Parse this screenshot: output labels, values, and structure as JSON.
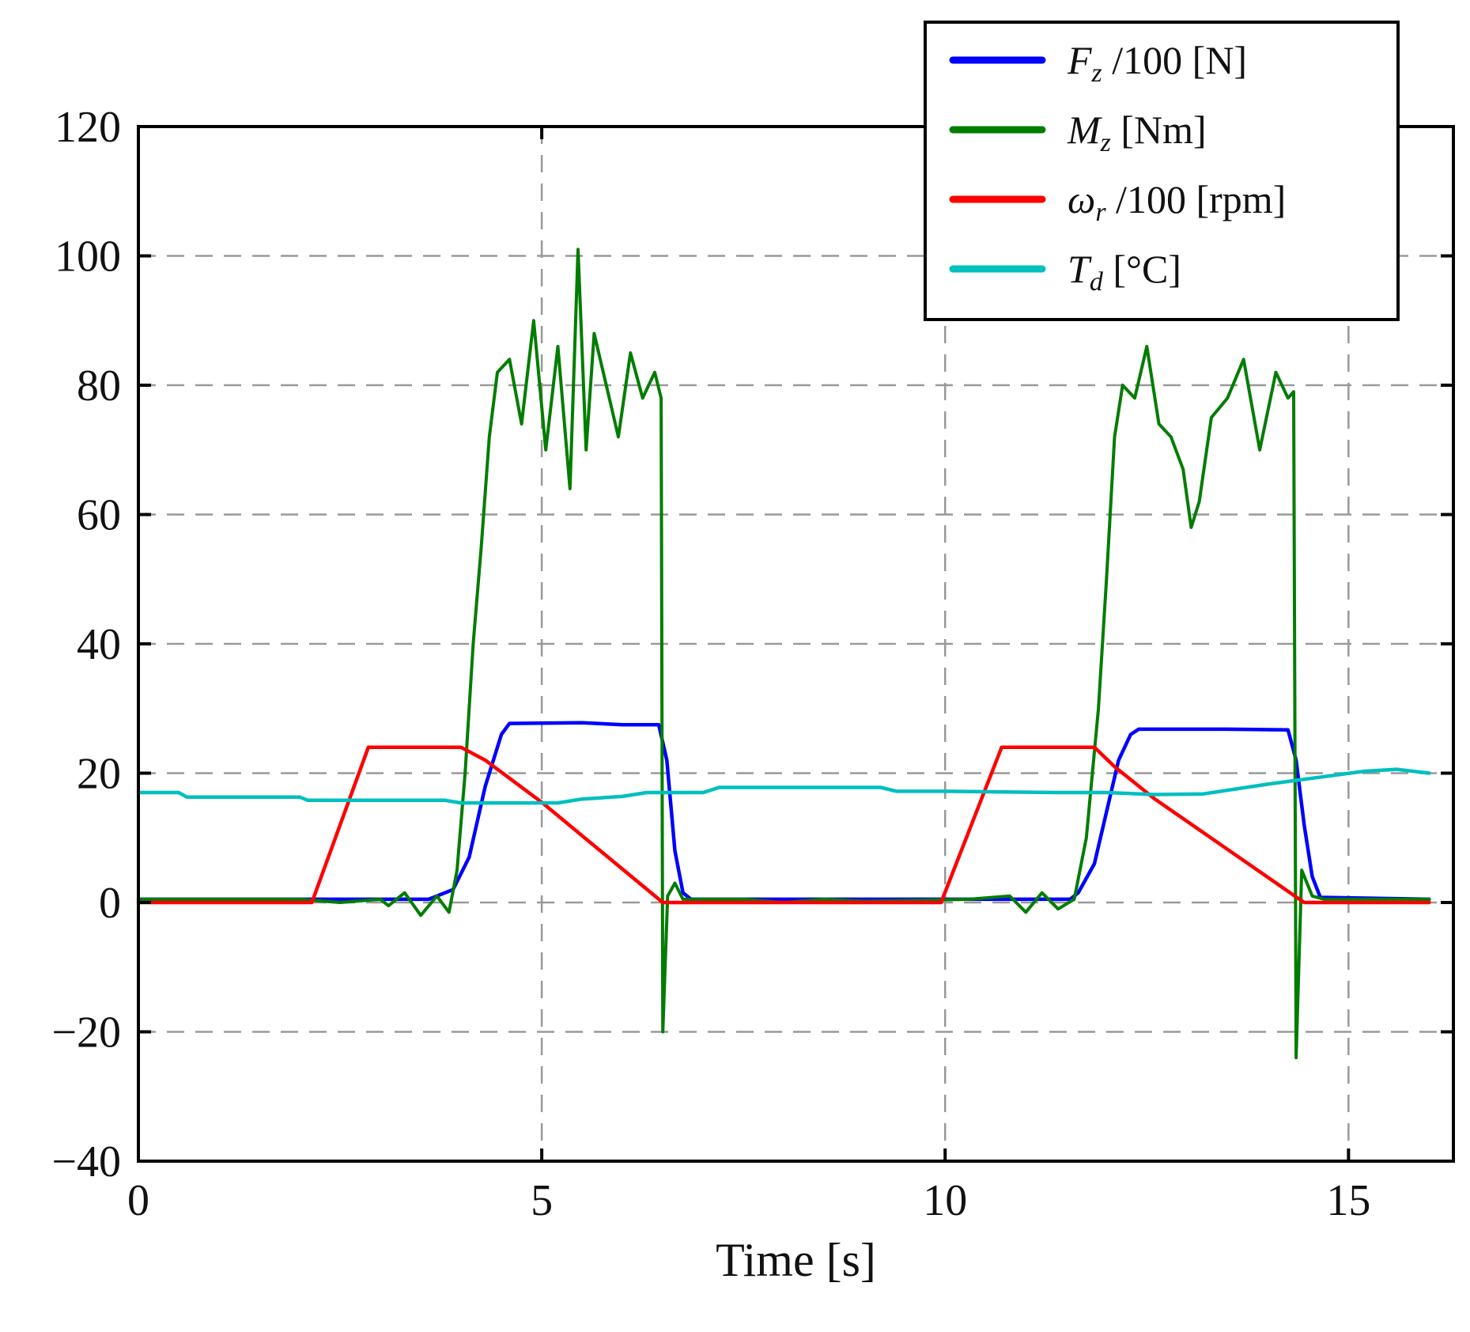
{
  "chart_data": {
    "type": "line",
    "title": "",
    "xlabel": "Time [s]",
    "ylabel": "",
    "xlim": [
      0,
      16.3
    ],
    "ylim": [
      -40,
      120
    ],
    "x_ticks": [
      0,
      5,
      10,
      15
    ],
    "y_ticks": [
      -40,
      -20,
      0,
      20,
      40,
      60,
      80,
      100,
      120
    ],
    "x_tick_labels": [
      "0",
      "5",
      "10",
      "15"
    ],
    "y_tick_labels": [
      "−40",
      "−20",
      "0",
      "20",
      "40",
      "60",
      "80",
      "100",
      "120"
    ],
    "grid": true,
    "legend_position": "top-right",
    "series": [
      {
        "name": "Fz /100 [N]",
        "legend_symbol": "F",
        "legend_subscript": "z",
        "legend_rest": " /100 [N]",
        "color": "#0000ff",
        "points": [
          [
            0,
            0.5
          ],
          [
            3.6,
            0.5
          ],
          [
            3.9,
            2
          ],
          [
            4.1,
            7
          ],
          [
            4.3,
            18
          ],
          [
            4.5,
            26
          ],
          [
            4.6,
            27.7
          ],
          [
            5.5,
            27.8
          ],
          [
            6.0,
            27.5
          ],
          [
            6.45,
            27.5
          ],
          [
            6.55,
            22
          ],
          [
            6.65,
            8
          ],
          [
            6.75,
            1.5
          ],
          [
            6.85,
            0.5
          ],
          [
            11.55,
            0.5
          ],
          [
            11.65,
            1.5
          ],
          [
            11.85,
            6
          ],
          [
            12.0,
            14
          ],
          [
            12.15,
            22
          ],
          [
            12.3,
            26
          ],
          [
            12.4,
            26.8
          ],
          [
            13.5,
            26.8
          ],
          [
            14.25,
            26.7
          ],
          [
            14.35,
            22
          ],
          [
            14.45,
            12
          ],
          [
            14.55,
            4
          ],
          [
            14.65,
            0.8
          ],
          [
            16.0,
            0.5
          ]
        ]
      },
      {
        "name": "Mz [Nm]",
        "legend_symbol": "M",
        "legend_subscript": "z",
        "legend_rest": "  [Nm]",
        "color": "#007d00",
        "points": [
          [
            0,
            0.5
          ],
          [
            2.0,
            0.5
          ],
          [
            2.5,
            0
          ],
          [
            3.0,
            0.5
          ],
          [
            3.1,
            -0.5
          ],
          [
            3.3,
            1.5
          ],
          [
            3.5,
            -2
          ],
          [
            3.7,
            1
          ],
          [
            3.85,
            -1.5
          ],
          [
            3.95,
            5
          ],
          [
            4.05,
            20
          ],
          [
            4.15,
            40
          ],
          [
            4.25,
            55
          ],
          [
            4.35,
            72
          ],
          [
            4.45,
            82
          ],
          [
            4.6,
            84
          ],
          [
            4.75,
            74
          ],
          [
            4.9,
            90
          ],
          [
            5.05,
            70
          ],
          [
            5.2,
            86
          ],
          [
            5.35,
            64
          ],
          [
            5.45,
            101
          ],
          [
            5.55,
            70
          ],
          [
            5.65,
            88
          ],
          [
            5.8,
            80
          ],
          [
            5.95,
            72
          ],
          [
            6.1,
            85
          ],
          [
            6.25,
            78
          ],
          [
            6.4,
            82
          ],
          [
            6.48,
            78
          ],
          [
            6.5,
            -20
          ],
          [
            6.56,
            1
          ],
          [
            6.65,
            3
          ],
          [
            6.75,
            0.5
          ],
          [
            7.5,
            0.5
          ],
          [
            8.0,
            0
          ],
          [
            8.5,
            0.5
          ],
          [
            9.0,
            0.2
          ],
          [
            9.5,
            0.3
          ],
          [
            10.3,
            0.5
          ],
          [
            10.8,
            1
          ],
          [
            11.0,
            -1.5
          ],
          [
            11.2,
            1.5
          ],
          [
            11.4,
            -1
          ],
          [
            11.6,
            0.5
          ],
          [
            11.75,
            10
          ],
          [
            11.9,
            30
          ],
          [
            12.0,
            50
          ],
          [
            12.1,
            72
          ],
          [
            12.2,
            80
          ],
          [
            12.35,
            78
          ],
          [
            12.5,
            86
          ],
          [
            12.65,
            74
          ],
          [
            12.8,
            72
          ],
          [
            12.95,
            67
          ],
          [
            13.05,
            58
          ],
          [
            13.15,
            62
          ],
          [
            13.3,
            75
          ],
          [
            13.5,
            78
          ],
          [
            13.7,
            84
          ],
          [
            13.9,
            70
          ],
          [
            14.1,
            82
          ],
          [
            14.25,
            78
          ],
          [
            14.32,
            79
          ],
          [
            14.35,
            -24
          ],
          [
            14.42,
            5
          ],
          [
            14.55,
            1
          ],
          [
            14.7,
            0.5
          ],
          [
            15.5,
            0.5
          ],
          [
            16.0,
            0.5
          ]
        ]
      },
      {
        "name": "ωr /100 [rpm]",
        "legend_symbol": "ω",
        "legend_subscript": "r",
        "legend_rest": " /100 [rpm]",
        "color": "#ff0000",
        "points": [
          [
            0,
            0
          ],
          [
            2.15,
            0
          ],
          [
            2.85,
            24
          ],
          [
            4.0,
            24
          ],
          [
            4.3,
            22
          ],
          [
            5.0,
            15.5
          ],
          [
            6.5,
            0
          ],
          [
            9.95,
            0
          ],
          [
            10.7,
            24
          ],
          [
            11.85,
            24
          ],
          [
            12.1,
            21
          ],
          [
            12.6,
            16
          ],
          [
            14.45,
            0
          ],
          [
            16.0,
            0
          ]
        ]
      },
      {
        "name": "Td [°C]",
        "legend_symbol": "T",
        "legend_subscript": "d",
        "legend_rest": "  [°C]",
        "color": "#00bfbf",
        "points": [
          [
            0,
            17
          ],
          [
            0.5,
            17
          ],
          [
            0.6,
            16.3
          ],
          [
            2.0,
            16.3
          ],
          [
            2.1,
            15.8
          ],
          [
            3.8,
            15.8
          ],
          [
            4.0,
            15.4
          ],
          [
            5.2,
            15.4
          ],
          [
            5.5,
            16
          ],
          [
            6.0,
            16.4
          ],
          [
            6.3,
            17
          ],
          [
            7.0,
            17
          ],
          [
            7.2,
            17.8
          ],
          [
            9.2,
            17.8
          ],
          [
            9.4,
            17.2
          ],
          [
            10.0,
            17.2
          ],
          [
            11.4,
            17
          ],
          [
            12.0,
            17
          ],
          [
            12.6,
            16.7
          ],
          [
            13.2,
            16.8
          ],
          [
            14.0,
            18.3
          ],
          [
            14.6,
            19.3
          ],
          [
            15.2,
            20.3
          ],
          [
            15.6,
            20.6
          ],
          [
            16.0,
            20
          ]
        ]
      }
    ]
  }
}
